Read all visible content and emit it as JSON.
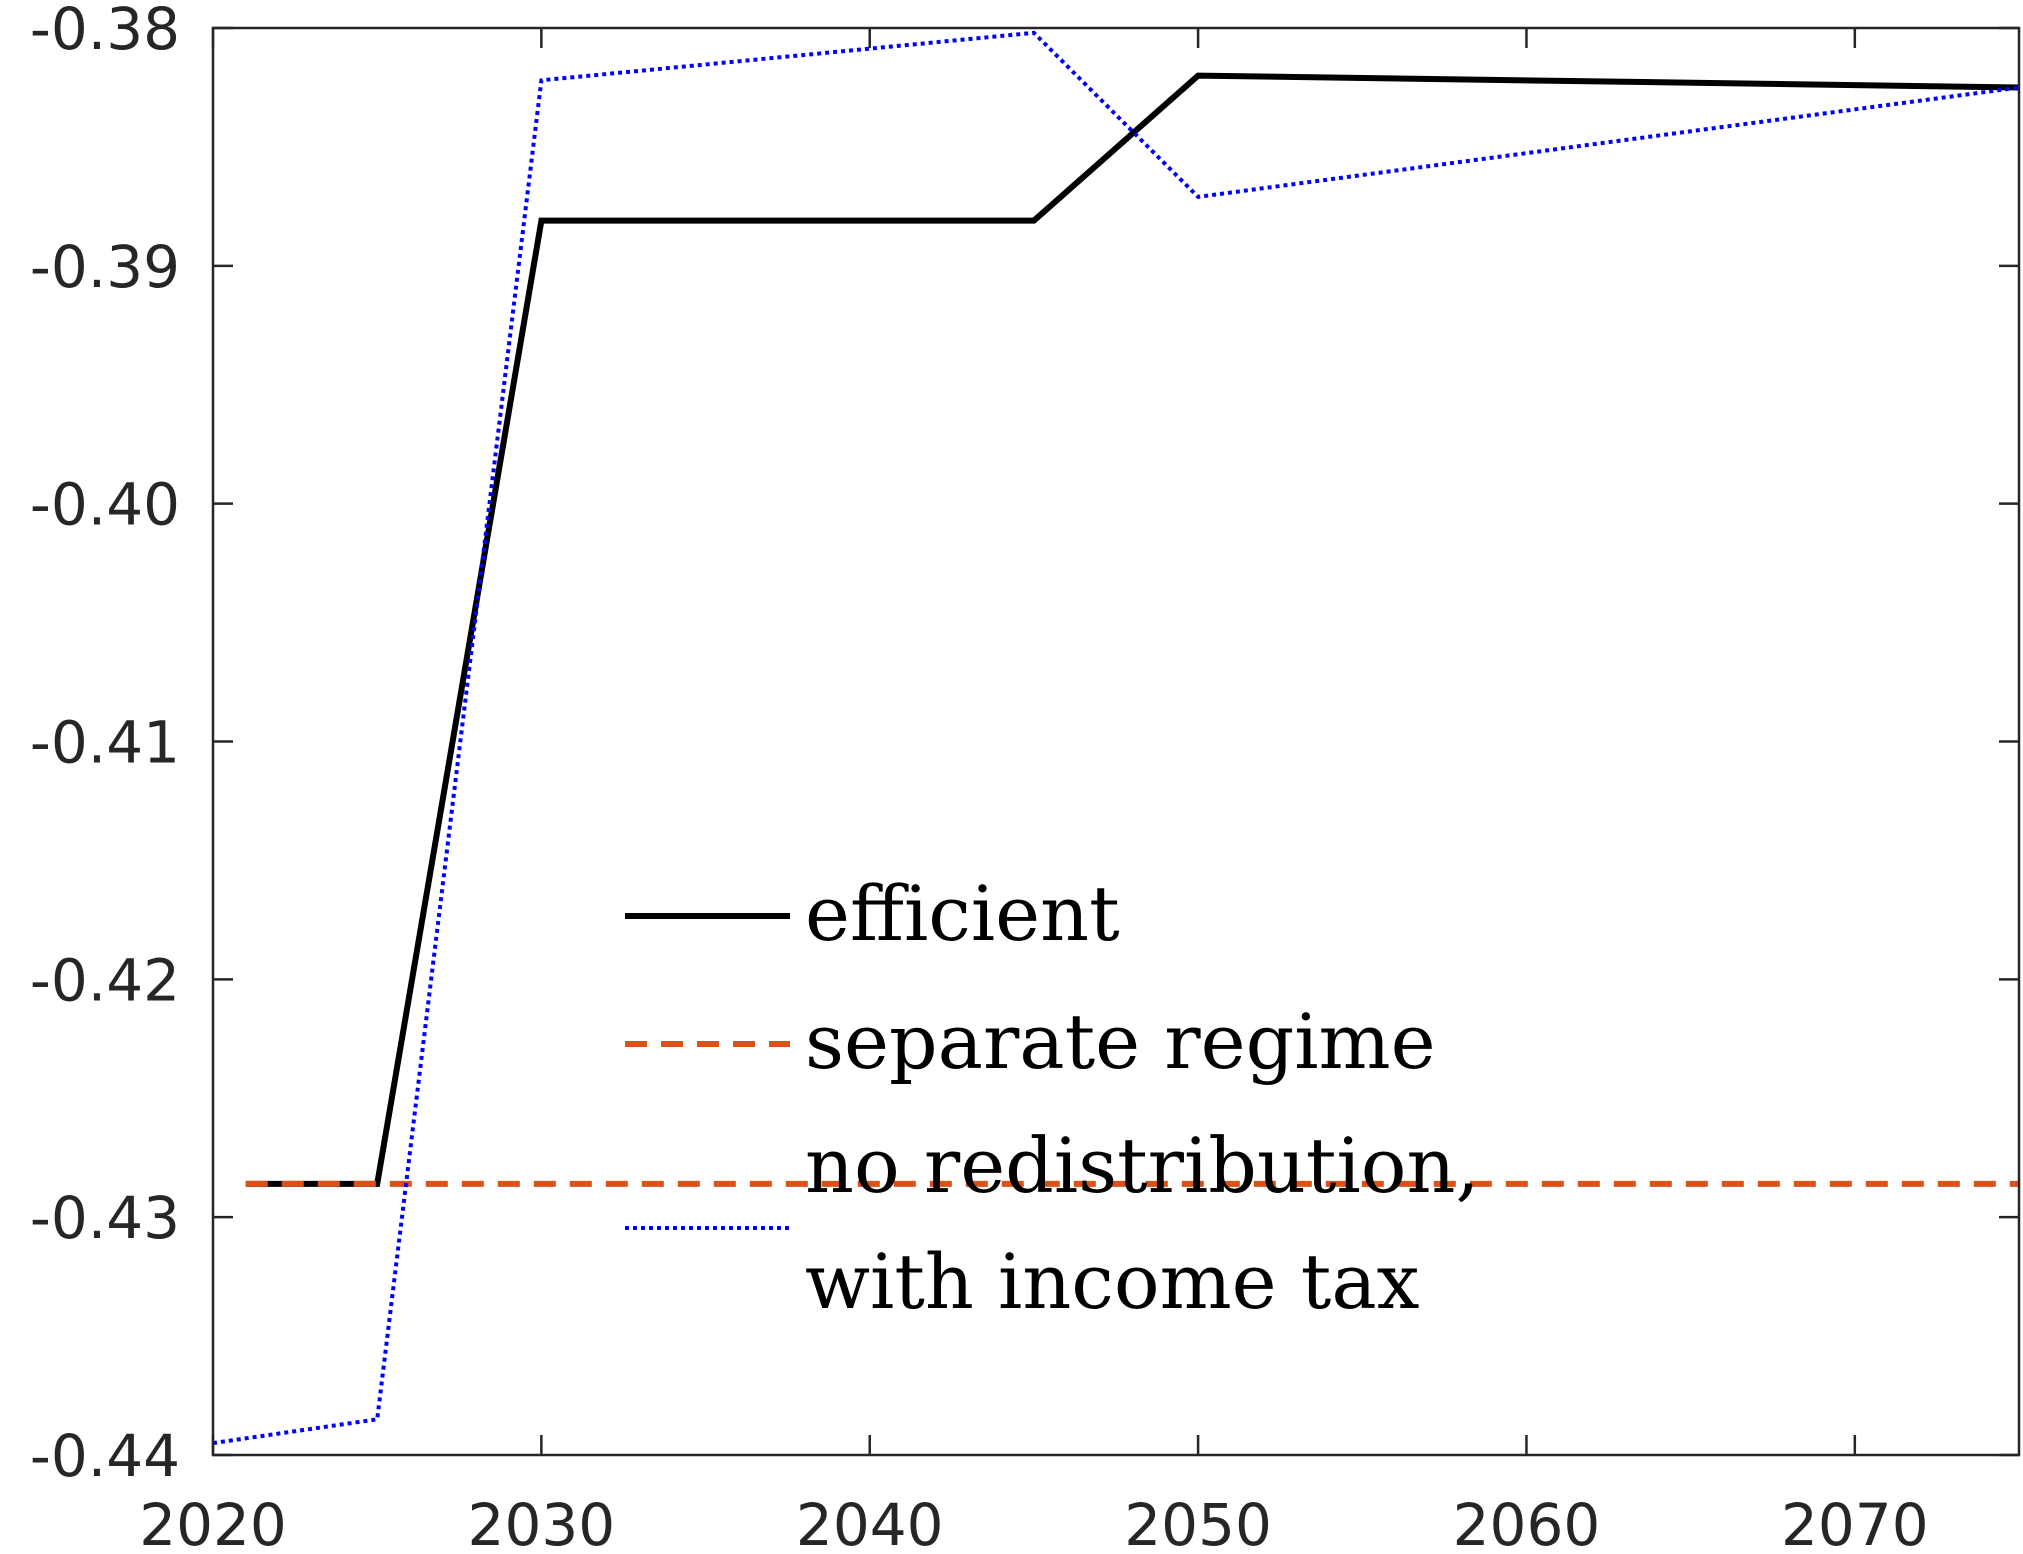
{
  "chart_data": {
    "type": "line",
    "title": "",
    "xlabel": "",
    "ylabel": "",
    "xlim": [
      2020,
      2075
    ],
    "ylim": [
      -0.44,
      -0.38
    ],
    "xticks": [
      2020,
      2030,
      2040,
      2050,
      2060,
      2070
    ],
    "yticks": [
      -0.44,
      -0.43,
      -0.42,
      -0.41,
      -0.4,
      -0.39,
      -0.38
    ],
    "xtick_labels": [
      "2020",
      "2030",
      "2040",
      "2050",
      "2060",
      "2070"
    ],
    "ytick_labels": [
      "-0.44",
      "-0.43",
      "-0.42",
      "-0.41",
      "-0.40",
      "-0.39",
      "-0.38"
    ],
    "grid": false,
    "legend_position": "lower-center",
    "series": [
      {
        "name": "efficient",
        "style": "solid",
        "color": "#000000",
        "x": [
          2021,
          2025,
          2030,
          2045,
          2050,
          2075
        ],
        "y": [
          -0.4286,
          -0.4286,
          -0.3881,
          -0.3881,
          -0.382,
          -0.3825
        ]
      },
      {
        "name": "separate regime",
        "style": "dashed",
        "color": "#D95319",
        "x": [
          2021,
          2075
        ],
        "y": [
          -0.4286,
          -0.4286
        ]
      },
      {
        "name": "no redistribution,\nwith income tax",
        "style": "dotted",
        "color": "#0000FF",
        "x": [
          2020,
          2025,
          2030,
          2045,
          2050,
          2075
        ],
        "y": [
          -0.4395,
          -0.4385,
          -0.3822,
          -0.3802,
          -0.3871,
          -0.3825
        ]
      }
    ],
    "legend": [
      {
        "lines": [
          "efficient"
        ]
      },
      {
        "lines": [
          "separate regime"
        ]
      },
      {
        "lines": [
          "no redistribution,",
          "with income tax"
        ]
      }
    ]
  }
}
